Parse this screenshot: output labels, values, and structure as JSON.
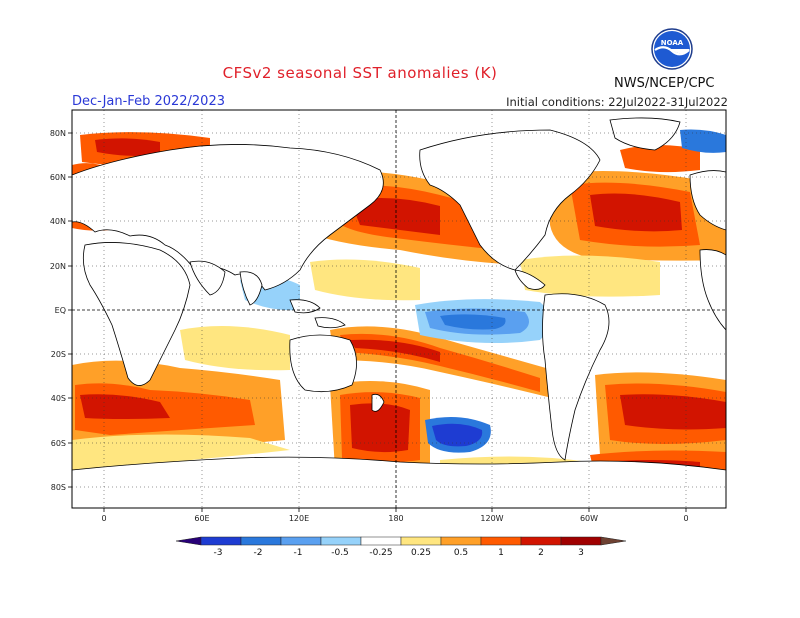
{
  "header": {
    "title": "CFSv2 seasonal SST anomalies (K)",
    "season": "Dec-Jan-Feb 2022/2023",
    "initial_conditions": "Initial conditions: 22Jul2022-31Jul2022",
    "agency": "NWS/NCEP/CPC",
    "logo_text": "NOAA"
  },
  "map": {
    "lat_labels": [
      "80N",
      "60N",
      "40N",
      "20N",
      "EQ",
      "20S",
      "40S",
      "60S",
      "80S"
    ],
    "lon_labels": [
      "0",
      "60E",
      "120E",
      "180",
      "120W",
      "60W",
      "0"
    ]
  },
  "colorbar": {
    "ticks": [
      "-3",
      "-2",
      "-1",
      "-0.5",
      "-0.25",
      "0.25",
      "0.5",
      "1",
      "2",
      "3"
    ],
    "colors": [
      "#280078",
      "#1e3cd2",
      "#2a78dc",
      "#5aa0f0",
      "#96d2fa",
      "#ffffff",
      "#ffe680",
      "#ffa028",
      "#ff5a00",
      "#d21400",
      "#a00000",
      "#6e4132"
    ]
  }
}
